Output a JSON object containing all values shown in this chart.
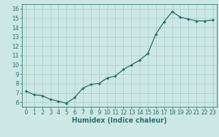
{
  "x": [
    0,
    1,
    2,
    3,
    4,
    5,
    6,
    7,
    8,
    9,
    10,
    11,
    12,
    13,
    14,
    15,
    16,
    17,
    18,
    19,
    20,
    21,
    22,
    23
  ],
  "y": [
    7.2,
    6.8,
    6.7,
    6.3,
    6.1,
    5.9,
    6.5,
    7.5,
    7.9,
    8.0,
    8.6,
    8.8,
    9.5,
    10.0,
    10.5,
    11.2,
    13.3,
    14.6,
    15.7,
    15.1,
    14.9,
    14.7,
    14.7,
    14.8
  ],
  "xlabel": "Humidex (Indice chaleur)",
  "ylim": [
    5.5,
    16.5
  ],
  "xlim": [
    -0.5,
    23.5
  ],
  "bg_color": "#cce8e4",
  "grid_color": "#aacfcc",
  "line_color": "#2d6e6e",
  "marker_color": "#2d6e6e",
  "tick_label_color": "#2d6e6e",
  "xlabel_color": "#2d6e6e",
  "yticks": [
    6,
    7,
    8,
    9,
    10,
    11,
    12,
    13,
    14,
    15,
    16
  ],
  "xticks": [
    0,
    1,
    2,
    3,
    4,
    5,
    6,
    7,
    8,
    9,
    10,
    11,
    12,
    13,
    14,
    15,
    16,
    17,
    18,
    19,
    20,
    21,
    22,
    23
  ],
  "axis_fontsize": 6.0,
  "label_fontsize": 7.0
}
